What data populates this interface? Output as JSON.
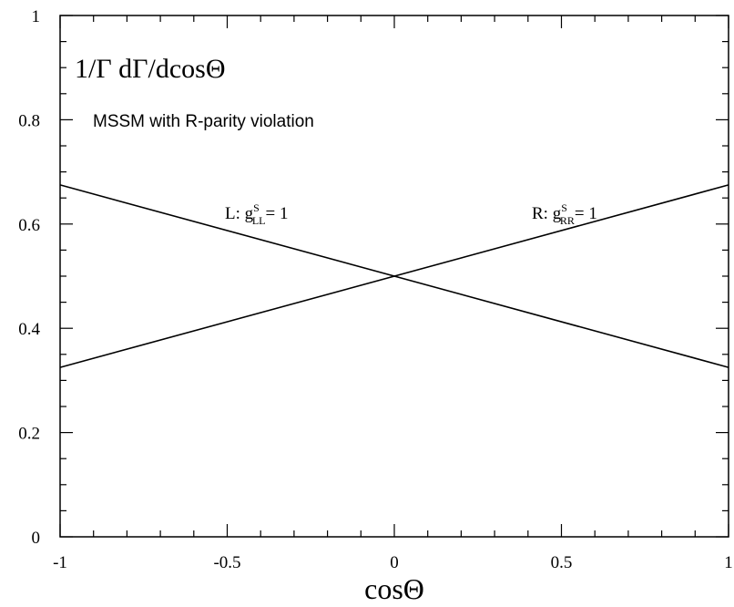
{
  "chart_data": {
    "type": "line",
    "title": "1/Γ dΓ/dcosΘ",
    "subtitle": "MSSM with R-parity violation",
    "xlabel": "cosΘ",
    "ylabel": "",
    "xlim": [
      -1,
      1
    ],
    "ylim": [
      0,
      1
    ],
    "x_ticks": [
      -1,
      -0.5,
      0,
      0.5,
      1
    ],
    "x_tick_labels": [
      "-1",
      "-0.5",
      "0",
      "0.5",
      "1"
    ],
    "y_ticks": [
      0,
      0.2,
      0.4,
      0.6,
      0.8,
      1
    ],
    "y_tick_labels": [
      "0",
      "0.2",
      "0.4",
      "0.6",
      "0.8",
      "1"
    ],
    "grid": false,
    "series": [
      {
        "label_prefix": "L: g",
        "label_sup": "S",
        "label_sub": "LL",
        "label_suffix": "= 1",
        "x": [
          -1,
          1
        ],
        "y": [
          0.675,
          0.325
        ]
      },
      {
        "label_prefix": "R: g",
        "label_sup": "S",
        "label_sub": "RR",
        "label_suffix": "= 1",
        "x": [
          -1,
          1
        ],
        "y": [
          0.325,
          0.675
        ]
      }
    ]
  }
}
